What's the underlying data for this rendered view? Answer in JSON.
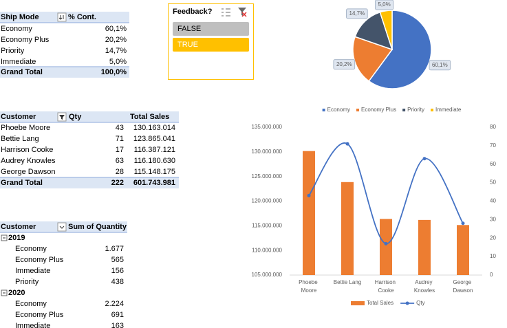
{
  "ship_mode_table": {
    "headers": [
      "Ship Mode",
      "% Cont."
    ],
    "rows": [
      [
        "Economy",
        "60,1%"
      ],
      [
        "Economy Plus",
        "20,2%"
      ],
      [
        "Priority",
        "14,7%"
      ],
      [
        "Immediate",
        "5,0%"
      ]
    ],
    "total": [
      "Grand Total",
      "100,0%"
    ]
  },
  "slicer": {
    "title": "Feedback?",
    "items": [
      "FALSE",
      "TRUE"
    ]
  },
  "customer_table": {
    "headers": [
      "Customer",
      "Qty",
      "Total Sales"
    ],
    "rows": [
      [
        "Phoebe Moore",
        "43",
        "130.163.014"
      ],
      [
        "Bettie Lang",
        "71",
        "123.865.041"
      ],
      [
        "Harrison Cooke",
        "17",
        "116.387.121"
      ],
      [
        "Audrey Knowles",
        "63",
        "116.180.630"
      ],
      [
        "George Dawson",
        "28",
        "115.148.175"
      ]
    ],
    "total": [
      "Grand Total",
      "222",
      "601.743.981"
    ]
  },
  "quantity_table": {
    "headers": [
      "Customer",
      "Sum of Quantity"
    ],
    "groups": [
      {
        "label": "2019",
        "rows": [
          [
            "Economy",
            "1.677"
          ],
          [
            "Economy Plus",
            "565"
          ],
          [
            "Immediate",
            "156"
          ],
          [
            "Priority",
            "438"
          ]
        ]
      },
      {
        "label": "2020",
        "rows": [
          [
            "Economy",
            "2.224"
          ],
          [
            "Economy Plus",
            "691"
          ],
          [
            "Immediate",
            "163"
          ]
        ]
      }
    ]
  },
  "chart_data": [
    {
      "type": "pie",
      "categories": [
        "Economy",
        "Economy Plus",
        "Priority",
        "Immediate"
      ],
      "values": [
        60.1,
        20.2,
        14.7,
        5.0
      ],
      "value_labels": [
        "60,1%",
        "20,2%",
        "14,7%",
        "5,0%"
      ],
      "colors": [
        "#4472c4",
        "#ed7d31",
        "#44546a",
        "#ffc000"
      ],
      "legend": "bottom"
    },
    {
      "type": "combo",
      "categories": [
        "Phoebe Moore",
        "Bettie Lang",
        "Harrison Cooke",
        "Audrey Knowles",
        "George Dawson"
      ],
      "series": [
        {
          "name": "Total Sales",
          "type": "bar",
          "color": "#ed7d31",
          "values": [
            130163014,
            123865041,
            116387121,
            116180630,
            115148175
          ]
        },
        {
          "name": "Qty",
          "type": "line",
          "color": "#4472c4",
          "axis": "y2",
          "values": [
            43,
            71,
            17,
            63,
            28
          ]
        }
      ],
      "ylim": [
        105000000,
        135000000
      ],
      "yticks": [
        {
          "value": 105000000,
          "label": "105.000.000"
        },
        {
          "value": 110000000,
          "label": "110.000.000"
        },
        {
          "value": 115000000,
          "label": "115.000.000"
        },
        {
          "value": 120000000,
          "label": "120.000.000"
        },
        {
          "value": 125000000,
          "label": "125.000.000"
        },
        {
          "value": 130000000,
          "label": "130.000.000"
        },
        {
          "value": 135000000,
          "label": "135.000.000"
        }
      ],
      "y2lim": [
        0,
        80
      ],
      "y2ticks": [
        0,
        10,
        20,
        30,
        40,
        50,
        60,
        70,
        80
      ],
      "legend": "bottom"
    }
  ]
}
